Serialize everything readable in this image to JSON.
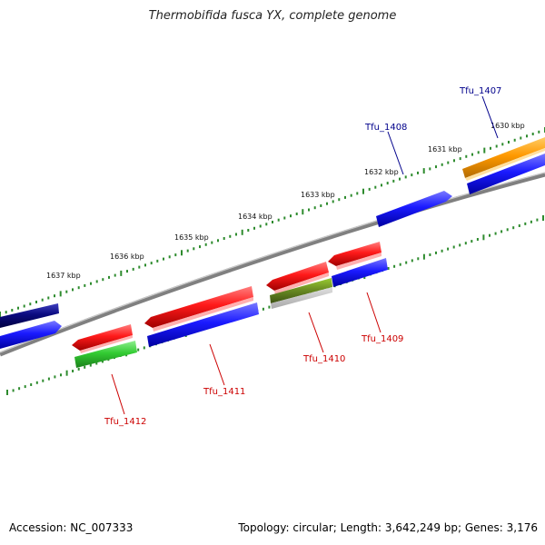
{
  "title": "Thermobifida fusca YX, complete genome",
  "footer": {
    "accession": "Accession: NC_007333",
    "topology": "Topology: circular; Length: 3,642,249 bp; Genes: 3,176"
  },
  "kbp_labels": [
    "1630 kbp",
    "1631 kbp",
    "1632 kbp",
    "1633 kbp",
    "1634 kbp",
    "1635 kbp",
    "1636 kbp",
    "1637 kbp"
  ],
  "gene_labels": {
    "tfu_1407": "Tfu_1407",
    "tfu_1408": "Tfu_1408",
    "tfu_1409": "Tfu_1409",
    "tfu_1410": "Tfu_1410",
    "tfu_1411": "Tfu_1411",
    "tfu_1412": "Tfu_1412"
  },
  "colors": {
    "forward_label": "#00008b",
    "reverse_label": "#cc0000",
    "blue": "#1a1aff",
    "red": "#ff1a1a",
    "green": "#33cc33",
    "olive": "#6b8e23",
    "orange": "#ff9900",
    "navy": "#0a0a80",
    "backbone": "#808080",
    "ticks": "#2e8b2e"
  }
}
